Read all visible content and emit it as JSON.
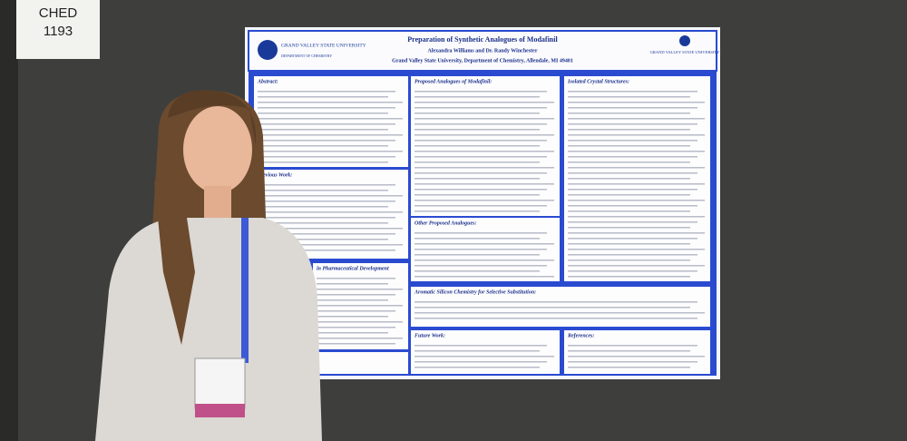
{
  "sign": {
    "line1": "CHED",
    "line2": "1193"
  },
  "poster": {
    "title": "Preparation of Synthetic Analogues of Modafinil",
    "authors": "Alexandra Williams and Dr. Randy Winchester",
    "affiliation": "Grand Valley State University, Department of Chemistry, Allendale, MI 49401",
    "logo_left": {
      "name": "GRAND VALLEY STATE UNIVERSITY",
      "department": "DEPARTMENT OF CHEMISTRY"
    },
    "logo_right": {
      "name": "GRAND VALLEY STATE UNIVERSITY"
    },
    "sections": [
      {
        "heading": "Abstract:"
      },
      {
        "heading": "Previous Work:"
      },
      {
        "heading": "in Pharmaceutical Development"
      },
      {
        "heading": "Proposed Analogues of Modafinil:"
      },
      {
        "heading": "Other Proposed Analogues:"
      },
      {
        "heading": "Isolated Crystal Structures:"
      },
      {
        "heading": "Aromatic Silicon Chemistry for Selective Substitution:"
      },
      {
        "heading": "Future Work:"
      },
      {
        "heading": "References:"
      }
    ]
  }
}
